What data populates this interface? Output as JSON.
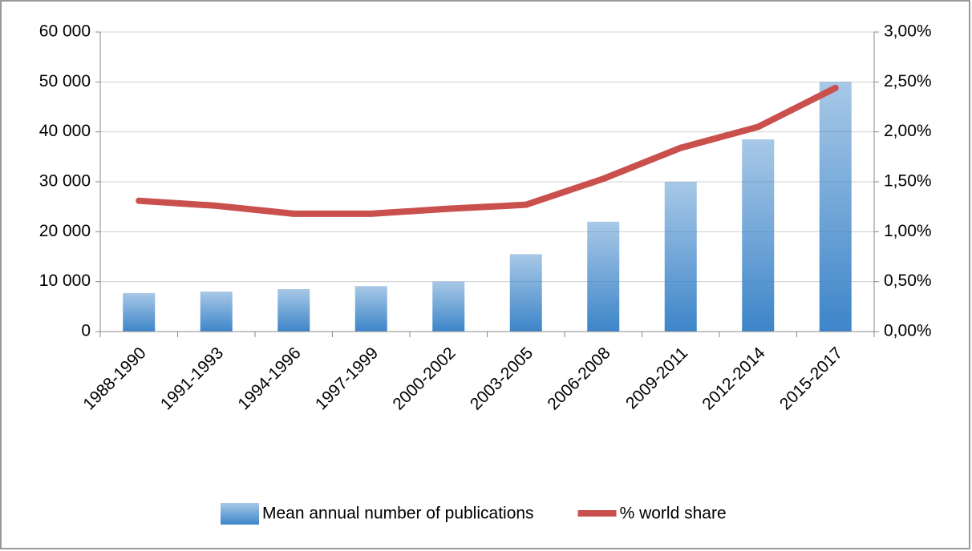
{
  "chart_data": {
    "type": "bar_line",
    "categories": [
      "1988-1990",
      "1991-1993",
      "1994-1996",
      "1997-1999",
      "2000-2002",
      "2003-2005",
      "2006-2008",
      "2009-2011",
      "2012-2014",
      "2015-2017"
    ],
    "series": [
      {
        "name": "Mean annual number of publications",
        "type": "bar",
        "color": "#3d85c9",
        "values": [
          7700,
          8000,
          8500,
          9100,
          10000,
          15500,
          22000,
          30000,
          38500,
          50000
        ]
      },
      {
        "name": "% world share",
        "type": "line",
        "axis": "y2",
        "color": "#c9504c",
        "values": [
          1.31,
          1.26,
          1.18,
          1.18,
          1.23,
          1.27,
          1.53,
          1.84,
          2.05,
          2.44
        ]
      }
    ],
    "ylim": [
      0,
      60000
    ],
    "yticks": [
      0,
      {
        "value": 10000,
        "label": "10 000"
      },
      {
        "value": 20000,
        "label": "20 000"
      },
      {
        "value": 30000,
        "label": "30 000"
      },
      {
        "value": 40000,
        "label": "40 000"
      },
      {
        "value": 50000,
        "label": "50 000"
      },
      {
        "value": 60000,
        "label": "60 000"
      }
    ],
    "y2lim": [
      0,
      3
    ],
    "y2ticks": [
      {
        "value": 0,
        "label": "0,00%"
      },
      {
        "value": 0.5,
        "label": "0,50%"
      },
      {
        "value": 1,
        "label": "1,00%"
      },
      {
        "value": 1.5,
        "label": "1,50%"
      },
      {
        "value": 2,
        "label": "2,00%"
      },
      {
        "value": 2.5,
        "label": "2,50%"
      },
      {
        "value": 3,
        "label": "3,00%"
      }
    ],
    "grid": true,
    "legend": "bottom"
  }
}
